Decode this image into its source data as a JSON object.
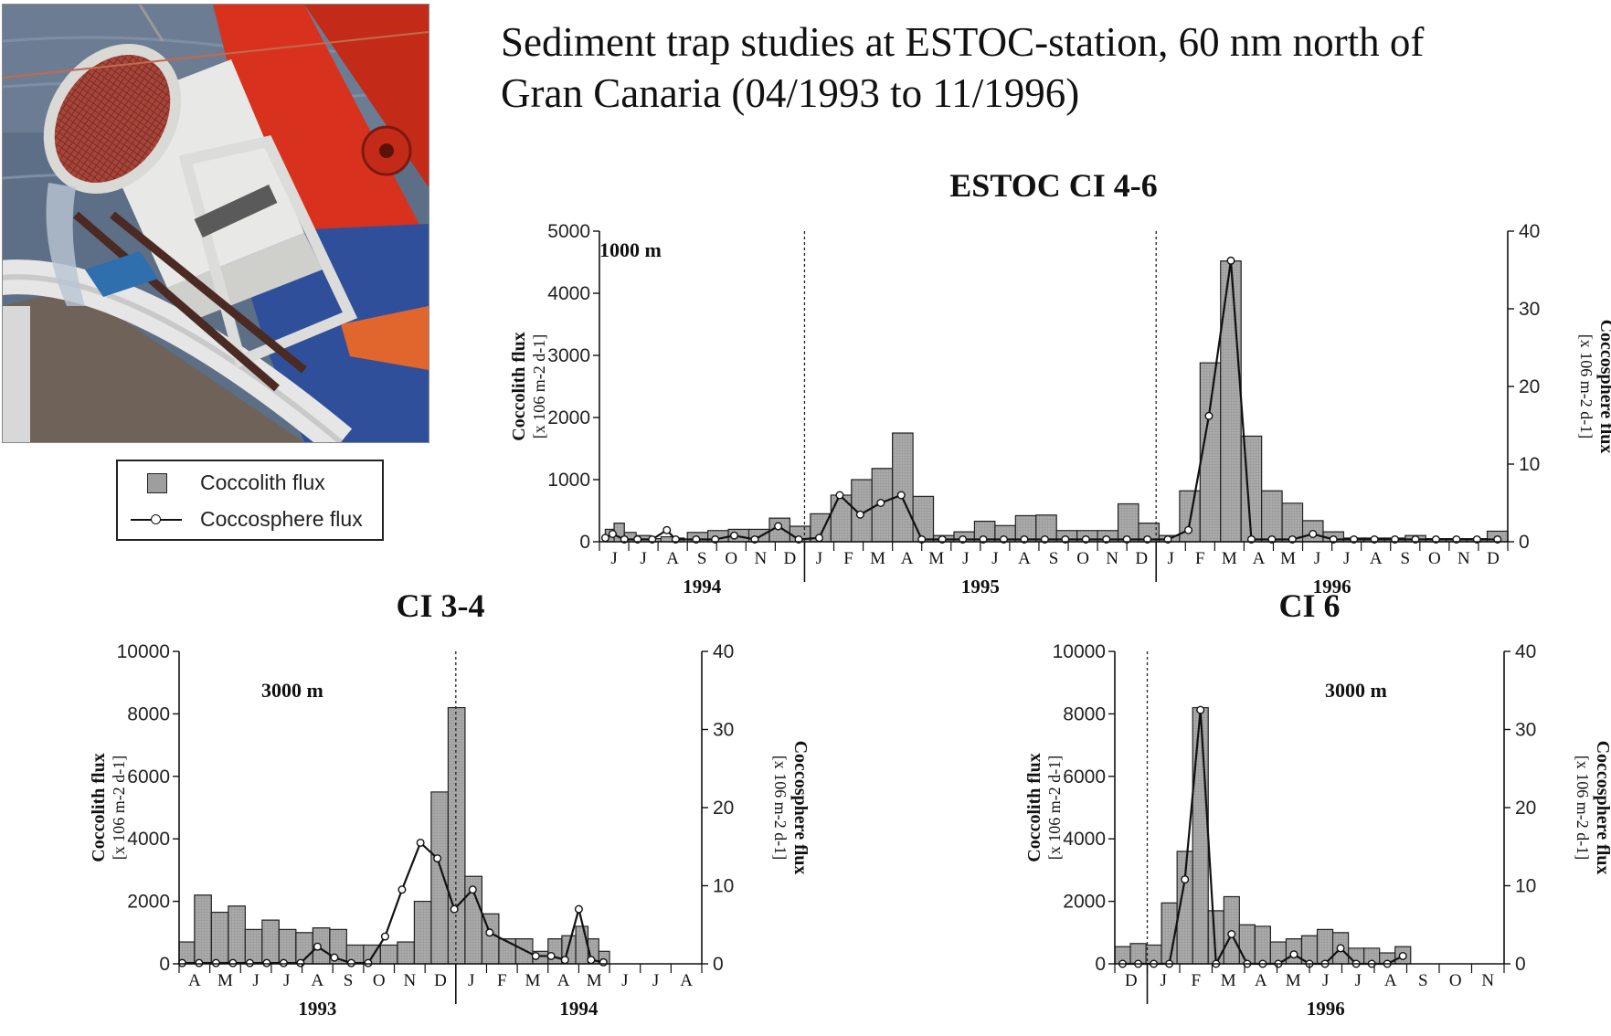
{
  "heading": {
    "line1": "Sediment trap studies at ESTOC-station, 60 nm north of",
    "line2": "Gran Canaria (04/1993 to 11/1996)"
  },
  "legend": {
    "bar_label": "Coccolith flux",
    "line_label": "Coccosphere flux"
  },
  "colors": {
    "bar_fill": "#9e9e9e",
    "line": "#111111",
    "photo_sea": "#5c6e85",
    "photo_red": "#d8321e"
  },
  "chart_data": [
    {
      "type": "bar",
      "title": "ESTOC CI 4-6",
      "depth_label": "1000 m",
      "ylabel": "Coccolith flux",
      "ylabel_units": "[x 106 m-2 d-1]",
      "y2label": "Coccosphere flux",
      "y2label_units": "[x 106 m-2 d-1]",
      "ylim": [
        0,
        5000
      ],
      "y2lim": [
        0,
        40
      ],
      "yticks": [
        0,
        1000,
        2000,
        3000,
        4000,
        5000
      ],
      "y2ticks": [
        0,
        10,
        20,
        30,
        40
      ],
      "months": [
        "J",
        "J",
        "A",
        "S",
        "O",
        "N",
        "D",
        "J",
        "F",
        "M",
        "A",
        "M",
        "J",
        "J",
        "A",
        "S",
        "O",
        "N",
        "D",
        "J",
        "F",
        "M",
        "A",
        "M",
        "J",
        "J",
        "A",
        "S",
        "O",
        "N",
        "D"
      ],
      "years": [
        {
          "label": "1994",
          "start": 0,
          "end": 7
        },
        {
          "label": "1995",
          "start": 7,
          "end": 19
        },
        {
          "label": "1996",
          "start": 19,
          "end": 31
        }
      ],
      "dividers": [
        7,
        19
      ],
      "bars": [
        {
          "x": 0.2,
          "w": 0.3,
          "v": 200
        },
        {
          "x": 0.5,
          "w": 0.35,
          "v": 300
        },
        {
          "x": 0.85,
          "w": 0.4,
          "v": 150
        },
        {
          "x": 1.25,
          "w": 0.5,
          "v": 100
        },
        {
          "x": 1.75,
          "w": 0.35,
          "v": 50
        },
        {
          "x": 2.1,
          "w": 0.4,
          "v": 80
        },
        {
          "x": 2.5,
          "w": 0.4,
          "v": 60
        },
        {
          "x": 3.0,
          "w": 0.7,
          "v": 150
        },
        {
          "x": 3.7,
          "w": 0.7,
          "v": 180
        },
        {
          "x": 4.4,
          "w": 0.7,
          "v": 200
        },
        {
          "x": 5.1,
          "w": 0.7,
          "v": 200
        },
        {
          "x": 5.8,
          "w": 0.7,
          "v": 380
        },
        {
          "x": 6.5,
          "w": 0.7,
          "v": 250
        },
        {
          "x": 7.2,
          "w": 0.7,
          "v": 450
        },
        {
          "x": 7.9,
          "w": 0.7,
          "v": 750
        },
        {
          "x": 8.6,
          "w": 0.7,
          "v": 1000
        },
        {
          "x": 9.3,
          "w": 0.7,
          "v": 1180
        },
        {
          "x": 10.0,
          "w": 0.7,
          "v": 1750
        },
        {
          "x": 10.7,
          "w": 0.7,
          "v": 730
        },
        {
          "x": 11.4,
          "w": 0.7,
          "v": 100
        },
        {
          "x": 12.1,
          "w": 0.7,
          "v": 160
        },
        {
          "x": 12.8,
          "w": 0.7,
          "v": 330
        },
        {
          "x": 13.5,
          "w": 0.7,
          "v": 260
        },
        {
          "x": 14.2,
          "w": 0.7,
          "v": 420
        },
        {
          "x": 14.9,
          "w": 0.7,
          "v": 430
        },
        {
          "x": 15.6,
          "w": 0.7,
          "v": 180
        },
        {
          "x": 16.3,
          "w": 0.7,
          "v": 180
        },
        {
          "x": 17.0,
          "w": 0.7,
          "v": 180
        },
        {
          "x": 17.7,
          "w": 0.7,
          "v": 610
        },
        {
          "x": 18.4,
          "w": 0.7,
          "v": 300
        },
        {
          "x": 19.1,
          "w": 0.7,
          "v": 100
        },
        {
          "x": 19.8,
          "w": 0.7,
          "v": 820
        },
        {
          "x": 20.5,
          "w": 0.7,
          "v": 2880
        },
        {
          "x": 21.2,
          "w": 0.7,
          "v": 4520
        },
        {
          "x": 21.9,
          "w": 0.7,
          "v": 1700
        },
        {
          "x": 22.6,
          "w": 0.7,
          "v": 820
        },
        {
          "x": 23.3,
          "w": 0.7,
          "v": 620
        },
        {
          "x": 24.0,
          "w": 0.7,
          "v": 340
        },
        {
          "x": 24.7,
          "w": 0.7,
          "v": 160
        },
        {
          "x": 25.4,
          "w": 0.7,
          "v": 60
        },
        {
          "x": 26.1,
          "w": 0.7,
          "v": 60
        },
        {
          "x": 26.8,
          "w": 0.7,
          "v": 60
        },
        {
          "x": 27.5,
          "w": 0.7,
          "v": 100
        },
        {
          "x": 28.2,
          "w": 0.7,
          "v": 50
        },
        {
          "x": 28.9,
          "w": 0.7,
          "v": 50
        },
        {
          "x": 29.6,
          "w": 0.7,
          "v": 50
        },
        {
          "x": 30.3,
          "w": 0.7,
          "v": 170
        }
      ],
      "line": [
        {
          "x": 0.2,
          "v": 0.5
        },
        {
          "x": 0.45,
          "v": 1.0
        },
        {
          "x": 0.85,
          "v": 0.3
        },
        {
          "x": 1.3,
          "v": 0.3
        },
        {
          "x": 1.8,
          "v": 0.3
        },
        {
          "x": 2.3,
          "v": 1.5
        },
        {
          "x": 2.6,
          "v": 0.3
        },
        {
          "x": 3.3,
          "v": 0.3
        },
        {
          "x": 3.95,
          "v": 0.3
        },
        {
          "x": 4.6,
          "v": 0.8
        },
        {
          "x": 5.3,
          "v": 0.3
        },
        {
          "x": 6.1,
          "v": 2.0
        },
        {
          "x": 6.8,
          "v": 0.3
        },
        {
          "x": 7.5,
          "v": 0.5
        },
        {
          "x": 8.2,
          "v": 6.0
        },
        {
          "x": 8.9,
          "v": 3.5
        },
        {
          "x": 9.6,
          "v": 5.0
        },
        {
          "x": 10.3,
          "v": 6.0
        },
        {
          "x": 11.0,
          "v": 0.3
        },
        {
          "x": 11.7,
          "v": 0.3
        },
        {
          "x": 12.4,
          "v": 0.3
        },
        {
          "x": 13.1,
          "v": 0.3
        },
        {
          "x": 13.8,
          "v": 0.3
        },
        {
          "x": 14.5,
          "v": 0.3
        },
        {
          "x": 15.2,
          "v": 0.3
        },
        {
          "x": 15.9,
          "v": 0.3
        },
        {
          "x": 16.6,
          "v": 0.3
        },
        {
          "x": 17.3,
          "v": 0.3
        },
        {
          "x": 18.0,
          "v": 0.3
        },
        {
          "x": 18.7,
          "v": 0.3
        },
        {
          "x": 19.4,
          "v": 0.3
        },
        {
          "x": 20.1,
          "v": 1.5
        },
        {
          "x": 20.8,
          "v": 16.2
        },
        {
          "x": 21.55,
          "v": 36.2
        },
        {
          "x": 22.25,
          "v": 0.3
        },
        {
          "x": 22.95,
          "v": 0.3
        },
        {
          "x": 23.65,
          "v": 0.3
        },
        {
          "x": 24.35,
          "v": 1.0
        },
        {
          "x": 25.05,
          "v": 0.3
        },
        {
          "x": 25.75,
          "v": 0.3
        },
        {
          "x": 26.45,
          "v": 0.3
        },
        {
          "x": 27.15,
          "v": 0.3
        },
        {
          "x": 27.85,
          "v": 0.3
        },
        {
          "x": 28.55,
          "v": 0.3
        },
        {
          "x": 29.25,
          "v": 0.3
        },
        {
          "x": 29.95,
          "v": 0.3
        },
        {
          "x": 30.65,
          "v": 0.3
        }
      ]
    },
    {
      "type": "bar",
      "title": "CI 3-4",
      "depth_label": "3000 m",
      "ylabel": "Coccolith flux",
      "ylabel_units": "[x 106 m-2 d-1]",
      "y2label": "Coccosphere flux",
      "y2label_units": "[x 106 m-2 d-1]",
      "ylim": [
        0,
        10000
      ],
      "y2lim": [
        0,
        40
      ],
      "yticks": [
        0,
        2000,
        4000,
        6000,
        8000,
        10000
      ],
      "y2ticks": [
        0,
        10,
        20,
        30,
        40
      ],
      "months": [
        "A",
        "M",
        "J",
        "J",
        "A",
        "S",
        "O",
        "N",
        "D",
        "J",
        "F",
        "M",
        "A",
        "M",
        "J",
        "J",
        "A"
      ],
      "years": [
        {
          "label": "1993",
          "start": 0,
          "end": 9
        },
        {
          "label": "1994",
          "start": 9,
          "end": 17
        }
      ],
      "dividers": [
        9
      ],
      "bars": [
        {
          "x": 0.0,
          "w": 0.5,
          "v": 700
        },
        {
          "x": 0.5,
          "w": 0.55,
          "v": 2200
        },
        {
          "x": 1.05,
          "w": 0.55,
          "v": 1650
        },
        {
          "x": 1.6,
          "w": 0.55,
          "v": 1850
        },
        {
          "x": 2.15,
          "w": 0.55,
          "v": 1100
        },
        {
          "x": 2.7,
          "w": 0.55,
          "v": 1400
        },
        {
          "x": 3.25,
          "w": 0.55,
          "v": 1100
        },
        {
          "x": 3.8,
          "w": 0.55,
          "v": 1000
        },
        {
          "x": 4.35,
          "w": 0.55,
          "v": 1150
        },
        {
          "x": 4.9,
          "w": 0.55,
          "v": 1100
        },
        {
          "x": 5.45,
          "w": 0.55,
          "v": 600
        },
        {
          "x": 6.0,
          "w": 0.55,
          "v": 600
        },
        {
          "x": 6.55,
          "w": 0.55,
          "v": 600
        },
        {
          "x": 7.1,
          "w": 0.55,
          "v": 700
        },
        {
          "x": 7.65,
          "w": 0.55,
          "v": 2000
        },
        {
          "x": 8.2,
          "w": 0.55,
          "v": 5500
        },
        {
          "x": 8.75,
          "w": 0.55,
          "v": 8200
        },
        {
          "x": 9.3,
          "w": 0.55,
          "v": 2800
        },
        {
          "x": 9.85,
          "w": 0.55,
          "v": 1600
        },
        {
          "x": 10.4,
          "w": 0.55,
          "v": 800
        },
        {
          "x": 10.95,
          "w": 0.55,
          "v": 800
        },
        {
          "x": 11.5,
          "w": 0.5,
          "v": 400
        },
        {
          "x": 12.0,
          "w": 0.45,
          "v": 800
        },
        {
          "x": 12.45,
          "w": 0.45,
          "v": 900
        },
        {
          "x": 12.9,
          "w": 0.4,
          "v": 1200
        },
        {
          "x": 13.3,
          "w": 0.35,
          "v": 800
        },
        {
          "x": 13.65,
          "w": 0.35,
          "v": 400
        }
      ],
      "line": [
        {
          "x": 0.1,
          "v": 0.1
        },
        {
          "x": 0.65,
          "v": 0.1
        },
        {
          "x": 1.2,
          "v": 0.1
        },
        {
          "x": 1.75,
          "v": 0.1
        },
        {
          "x": 2.3,
          "v": 0.1
        },
        {
          "x": 2.85,
          "v": 0.1
        },
        {
          "x": 3.4,
          "v": 0.1
        },
        {
          "x": 3.95,
          "v": 0.1
        },
        {
          "x": 4.5,
          "v": 2.2
        },
        {
          "x": 5.05,
          "v": 0.8
        },
        {
          "x": 5.6,
          "v": 0.1
        },
        {
          "x": 6.15,
          "v": 0.1
        },
        {
          "x": 6.7,
          "v": 3.5
        },
        {
          "x": 7.25,
          "v": 9.5
        },
        {
          "x": 7.85,
          "v": 15.5
        },
        {
          "x": 8.4,
          "v": 13.5
        },
        {
          "x": 8.95,
          "v": 7.0
        },
        {
          "x": 9.55,
          "v": 9.5
        },
        {
          "x": 10.1,
          "v": 4.0
        },
        {
          "x": 11.6,
          "v": 1.0
        },
        {
          "x": 12.1,
          "v": 1.0
        },
        {
          "x": 12.55,
          "v": 0.5
        },
        {
          "x": 13.0,
          "v": 7.0
        },
        {
          "x": 13.4,
          "v": 0.5
        },
        {
          "x": 13.8,
          "v": 0.2
        }
      ]
    },
    {
      "type": "bar",
      "title": "CI 6",
      "depth_label": "3000 m",
      "ylabel": "Coccolith flux",
      "ylabel_units": "[x 106 m-2 d-1]",
      "y2label": "Coccosphere flux",
      "y2label_units": "[x 106 m-2 d-1]",
      "ylim": [
        0,
        10000
      ],
      "y2lim": [
        0,
        40
      ],
      "yticks": [
        0,
        2000,
        4000,
        6000,
        8000,
        10000
      ],
      "y2ticks": [
        0,
        10,
        20,
        30,
        40
      ],
      "months": [
        "D",
        "J",
        "F",
        "M",
        "A",
        "M",
        "J",
        "J",
        "A",
        "S",
        "O",
        "N"
      ],
      "years": [
        {
          "label": "1996",
          "start": 1,
          "end": 12
        }
      ],
      "dividers": [
        1
      ],
      "bars": [
        {
          "x": 0.0,
          "w": 0.48,
          "v": 550
        },
        {
          "x": 0.48,
          "w": 0.48,
          "v": 650
        },
        {
          "x": 0.96,
          "w": 0.48,
          "v": 600
        },
        {
          "x": 1.44,
          "w": 0.48,
          "v": 1950
        },
        {
          "x": 1.92,
          "w": 0.48,
          "v": 3600
        },
        {
          "x": 2.4,
          "w": 0.48,
          "v": 8200
        },
        {
          "x": 2.88,
          "w": 0.48,
          "v": 1700
        },
        {
          "x": 3.36,
          "w": 0.48,
          "v": 2150
        },
        {
          "x": 3.84,
          "w": 0.48,
          "v": 1250
        },
        {
          "x": 4.32,
          "w": 0.48,
          "v": 1200
        },
        {
          "x": 4.8,
          "w": 0.48,
          "v": 700
        },
        {
          "x": 5.28,
          "w": 0.48,
          "v": 800
        },
        {
          "x": 5.76,
          "w": 0.48,
          "v": 900
        },
        {
          "x": 6.24,
          "w": 0.48,
          "v": 1100
        },
        {
          "x": 6.72,
          "w": 0.48,
          "v": 1000
        },
        {
          "x": 7.2,
          "w": 0.48,
          "v": 500
        },
        {
          "x": 7.68,
          "w": 0.48,
          "v": 500
        },
        {
          "x": 8.16,
          "w": 0.48,
          "v": 350
        },
        {
          "x": 8.64,
          "w": 0.48,
          "v": 550
        }
      ],
      "line": [
        {
          "x": 0.24,
          "v": 0.0
        },
        {
          "x": 0.72,
          "v": 0.0
        },
        {
          "x": 1.2,
          "v": 0.0
        },
        {
          "x": 1.68,
          "v": 0.0
        },
        {
          "x": 2.16,
          "v": 10.8
        },
        {
          "x": 2.64,
          "v": 32.5
        },
        {
          "x": 3.12,
          "v": 0.0
        },
        {
          "x": 3.6,
          "v": 3.8
        },
        {
          "x": 4.08,
          "v": 0.0
        },
        {
          "x": 4.56,
          "v": 0.0
        },
        {
          "x": 5.04,
          "v": 0.0
        },
        {
          "x": 5.52,
          "v": 1.2
        },
        {
          "x": 6.0,
          "v": 0.0
        },
        {
          "x": 6.48,
          "v": 0.0
        },
        {
          "x": 6.96,
          "v": 2.0
        },
        {
          "x": 7.44,
          "v": 0.0
        },
        {
          "x": 7.92,
          "v": 0.0
        },
        {
          "x": 8.4,
          "v": 0.0
        },
        {
          "x": 8.88,
          "v": 1.0
        }
      ]
    }
  ]
}
